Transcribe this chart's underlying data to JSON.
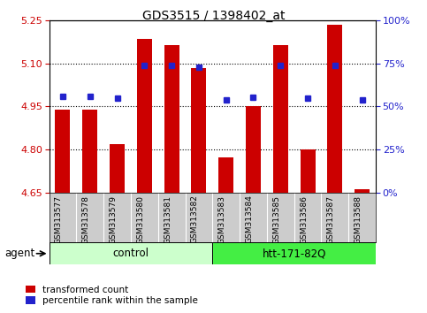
{
  "title": "GDS3515 / 1398402_at",
  "samples": [
    "GSM313577",
    "GSM313578",
    "GSM313579",
    "GSM313580",
    "GSM313581",
    "GSM313582",
    "GSM313583",
    "GSM313584",
    "GSM313585",
    "GSM313586",
    "GSM313587",
    "GSM313588"
  ],
  "bar_values": [
    4.94,
    4.94,
    4.82,
    5.185,
    5.165,
    5.085,
    4.773,
    4.95,
    5.165,
    4.8,
    5.235,
    4.662
  ],
  "dot_values": [
    4.984,
    4.984,
    4.979,
    5.093,
    5.093,
    5.087,
    4.974,
    4.981,
    5.093,
    4.979,
    5.093,
    4.974
  ],
  "bar_bottom": 4.65,
  "ylim_min": 4.65,
  "ylim_max": 5.25,
  "yticks_left": [
    4.65,
    4.8,
    4.95,
    5.1,
    5.25
  ],
  "yticks_right": [
    0,
    25,
    50,
    75,
    100
  ],
  "ytick_labels_right": [
    "0%",
    "25%",
    "50%",
    "75%",
    "100%"
  ],
  "bar_color": "#cc0000",
  "dot_color": "#2222cc",
  "agent_groups": [
    {
      "label": "control",
      "start": 0,
      "end": 6,
      "color": "#ccffcc"
    },
    {
      "label": "htt-171-82Q",
      "start": 6,
      "end": 12,
      "color": "#44ee44"
    }
  ],
  "agent_label": "agent",
  "legend_items": [
    {
      "color": "#cc0000",
      "label": "transformed count"
    },
    {
      "color": "#2222cc",
      "label": "percentile rank within the sample"
    }
  ],
  "bar_width": 0.55,
  "tick_label_color_left": "#cc0000",
  "tick_label_color_right": "#2222cc",
  "sample_bg_color": "#cccccc",
  "grid_yticks": [
    4.8,
    4.95,
    5.1
  ]
}
